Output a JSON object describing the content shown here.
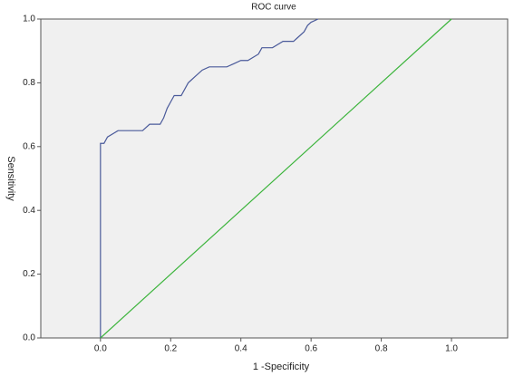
{
  "chart_data": {
    "type": "line",
    "title": "ROC curve",
    "x_label": "1 -Specificity",
    "y_label": "Sensitivity",
    "xlim": [
      -0.17,
      1.16
    ],
    "ylim": [
      0,
      1
    ],
    "xticks": [
      {
        "value": 0,
        "label": "0.0"
      },
      {
        "value": 0.2,
        "label": "0.2"
      },
      {
        "value": 0.4,
        "label": "0.4"
      },
      {
        "value": 0.6,
        "label": "0.6"
      },
      {
        "value": 0.8,
        "label": "0.8"
      },
      {
        "value": 1,
        "label": "1.0"
      }
    ],
    "yticks": [
      {
        "value": 0,
        "label": "0.0"
      },
      {
        "value": 0.2,
        "label": "0.2"
      },
      {
        "value": 0.4,
        "label": "0.4"
      },
      {
        "value": 0.6,
        "label": "0.6"
      },
      {
        "value": 0.8,
        "label": "0.8"
      },
      {
        "value": 1,
        "label": "1.0"
      }
    ],
    "series": [
      {
        "color": "#4a5a9a",
        "x": [
          0,
          0,
          0.01,
          0.02,
          0.05,
          0.12,
          0.14,
          0.17,
          0.18,
          0.19,
          0.2,
          0.21,
          0.23,
          0.25,
          0.26,
          0.27,
          0.29,
          0.31,
          0.36,
          0.38,
          0.4,
          0.42,
          0.45,
          0.46,
          0.49,
          0.52,
          0.55,
          0.56,
          0.58,
          0.59,
          0.6,
          0.62
        ],
        "values": [
          0,
          0.61,
          0.61,
          0.63,
          0.65,
          0.65,
          0.67,
          0.67,
          0.69,
          0.72,
          0.74,
          0.76,
          0.76,
          0.8,
          0.81,
          0.82,
          0.84,
          0.85,
          0.85,
          0.86,
          0.87,
          0.87,
          0.89,
          0.91,
          0.91,
          0.93,
          0.93,
          0.94,
          0.96,
          0.98,
          0.99,
          1
        ]
      },
      {
        "color": "#3cb43c",
        "x": [
          0,
          1
        ],
        "values": [
          0,
          1
        ]
      }
    ]
  }
}
